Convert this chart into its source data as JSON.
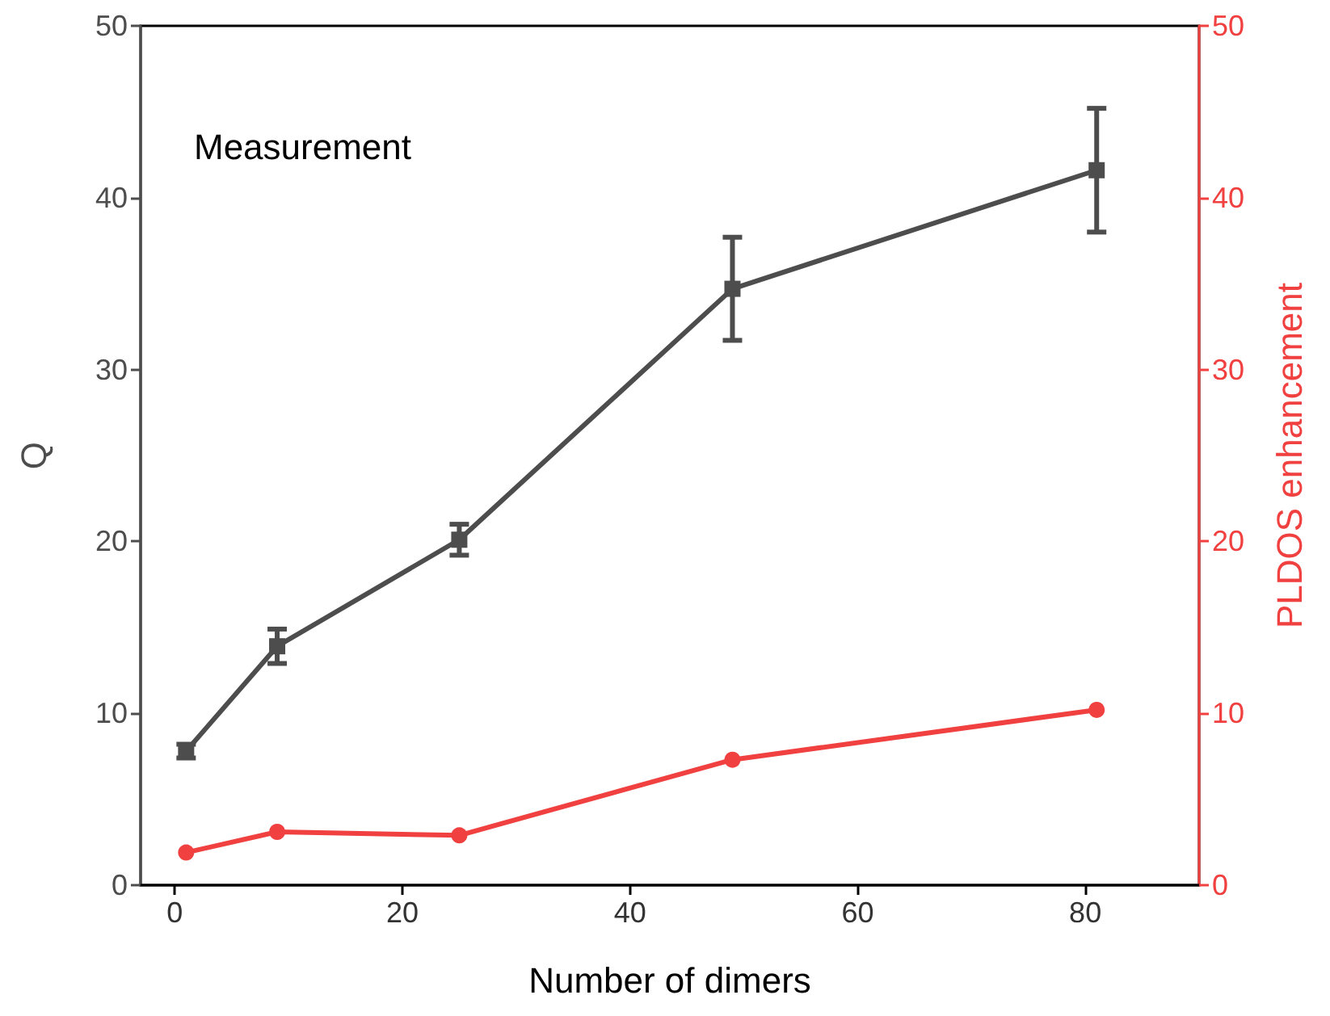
{
  "chart_data": {
    "type": "line",
    "xlabel": "Number of dimers",
    "ylabel": "Q",
    "y2label": "PLDOS enhancement",
    "annotations": [
      "Measurement"
    ],
    "x": [
      1,
      9,
      25,
      49,
      81
    ],
    "series": [
      {
        "color": "#4d4d4d",
        "values": [
          7.8,
          13.9,
          20.1,
          34.7,
          41.6
        ],
        "errors": [
          0.4,
          1.0,
          0.9,
          3.0,
          3.6
        ],
        "marker": "square"
      },
      {
        "color": "#f04040",
        "values": [
          1.9,
          3.1,
          2.9,
          7.3,
          10.2
        ],
        "axis": "y2",
        "marker": "circle"
      }
    ],
    "xlim": [
      -3,
      90
    ],
    "xticks": [
      0,
      20,
      40,
      60,
      80
    ],
    "ylim": [
      0,
      50
    ],
    "yticks": [
      0,
      10,
      20,
      30,
      40,
      50
    ],
    "y2lim": [
      0,
      50
    ],
    "y2ticks": [
      0,
      10,
      20,
      30,
      40,
      50
    ],
    "grid": false,
    "line_style": "solid"
  }
}
